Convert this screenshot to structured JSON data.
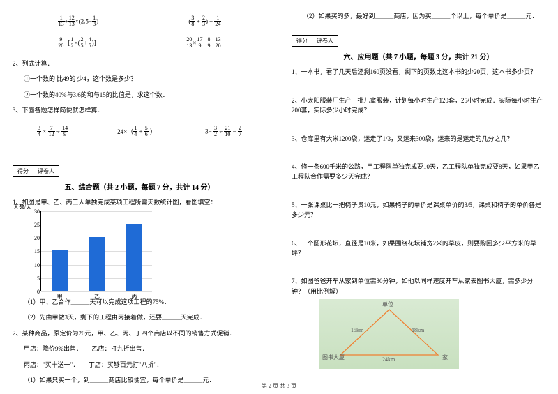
{
  "left": {
    "formula_row1": {
      "f1": {
        "parts": [
          "1",
          "13",
          "+",
          "12",
          "13",
          "×(2.5−",
          "1",
          "3",
          ")"
        ]
      },
      "f2": {
        "parts": [
          "(",
          "3",
          "8",
          " + ",
          "2",
          "3",
          ") ÷ ",
          "1",
          "24"
        ]
      }
    },
    "formula_row2": {
      "f1": {
        "parts": [
          "9",
          "20",
          "−[",
          "1",
          "2",
          "×(",
          "2",
          "5",
          "+",
          "4",
          "5",
          ")]"
        ]
      },
      "f2": {
        "parts": [
          "20",
          "13",
          "×",
          "17",
          "9",
          "−",
          "8",
          "9",
          "−",
          "13",
          "20"
        ]
      }
    },
    "q2_title": "2、列式计算．",
    "q2_1": "①一个数的 比49的 少4，这个数是多少？",
    "q2_2": "②一个数的40%与3.6的和与15的比值是，求这个数．",
    "q3_title": "3、下面各题怎样简便就怎样算．",
    "formula_row3": {
      "f1": {
        "parts": [
          "3",
          "4",
          " × ",
          "7",
          "12",
          " ÷ ",
          "14",
          "9"
        ]
      },
      "f2": {
        "parts": [
          "24×（",
          "1",
          "4",
          " + ",
          "5",
          "6",
          " ）"
        ]
      },
      "f3": {
        "parts": [
          "3− ",
          "3",
          "2",
          " ÷ ",
          "21",
          "10",
          " − ",
          "2",
          "7"
        ]
      }
    },
    "score_labels": [
      "得分",
      "评卷人"
    ],
    "section5_title": "五、综合题（共 2 小题，每题 7 分，共计 14 分）",
    "q5_1_intro": "1、如图是甲、乙、丙三人单独完成某项工程所需天数统计图，看图填空：",
    "chart": {
      "ylabel": "天数/天",
      "ymax": 30,
      "ystep": 5,
      "categories": [
        "甲",
        "乙",
        "丙"
      ],
      "values": [
        15,
        20,
        25
      ],
      "bar_color": "#1f6bd6",
      "grid_color": "#dddddd"
    },
    "q5_1_a": "（1）甲、乙合作＿＿＿天可以完成这项工程的75%．",
    "q5_1_b": "（2）先由甲做3天，剩下的工程由丙接着做，还要＿＿＿天完成．",
    "q5_2_intro": "2、某种商品，原定价为20元，甲、乙、丙、丁四个商店以不同的销售方式促销．",
    "q5_2_a": "甲店：降价9%出售．　　乙店：打九折出售．",
    "q5_2_b": "丙店：\"买十送一\"．　　丁店：买够百元打\"八折\"．",
    "q5_2_c": "（1）如果只买一个，到＿＿＿商店比较便宜，每个单价是＿＿＿元．"
  },
  "right": {
    "q5_2_d": "（2）如果买的多，最好到＿＿＿商店，因为买＿＿＿个以上，每个单价是＿＿＿元．",
    "score_labels": [
      "得分",
      "评卷人"
    ],
    "section6_title": "六、应用题（共 7 小题，每题 3 分，共计 21 分）",
    "q6_1": "1、一本书，看了几天后还剩160页没看，剩下的页数比这本书的少20页，这本书多少页？",
    "q6_2": "2、小太阳服装厂生产一批儿童服装，计划每小时生产120套，25小时完成．实际每小时生产200套，实际多少小时完成？",
    "q6_3": "3、仓库里有大米1200袋，运走了1/3，又运来300袋，运来的是运走的几分之几？",
    "q6_4": "4、修一条600千米的公路，甲工程队单独完成要10天，乙工程队单独完成要8天，如果甲乙工程队合作需要多少天完成？",
    "q6_5": "5、一张课桌比一把椅子贵10元，如果椅子的单价是课桌单价的3/5，课桌和椅子的单价各是多少元？",
    "q6_6": "6、一个圆形花坛，直径是10米，如果围绕花坛铺宽2米的草皮，则要购回多少平方米的草坪？",
    "q6_7": "7、如图爸爸开车从家到单位需30分钟，如他以同样速度开车从家去图书大厦，需多少分钟？（用比例解）",
    "triangle": {
      "top": "单位",
      "left_side": "15km",
      "right_side": "18km",
      "bottom": "24km",
      "bl": "图书大厦",
      "br": "家",
      "line_color": "#f08030",
      "bg_from": "#d9ead3",
      "bg_to": "#c8e0bf"
    }
  },
  "footer": "第 2 页 共 3 页"
}
